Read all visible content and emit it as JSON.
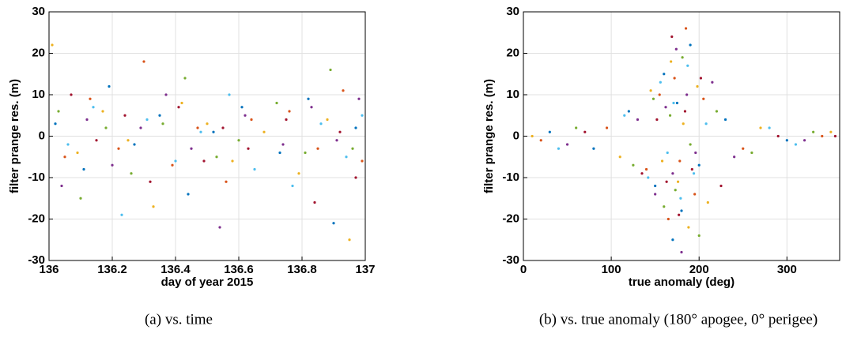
{
  "chart_data": [
    {
      "type": "scatter",
      "xlabel": "day of year 2015",
      "ylabel": "filter prange res. (m)",
      "caption": "(a) vs. time",
      "xlim": [
        136,
        137
      ],
      "xticks": [
        136,
        136.2,
        136.4,
        136.6,
        136.8,
        137
      ],
      "ylim": [
        -30,
        30
      ],
      "yticks": [
        -30,
        -20,
        -10,
        0,
        10,
        20,
        30
      ],
      "grid": true,
      "series": [
        {
          "color": "#0072BD",
          "x": [
            136.02,
            136.11,
            136.19,
            136.27,
            136.35,
            136.44,
            136.52,
            136.61,
            136.73,
            136.82,
            136.9,
            136.97
          ],
          "values": [
            3,
            -8,
            12,
            -2,
            5,
            -14,
            1,
            7,
            -4,
            9,
            -21,
            2
          ]
        },
        {
          "color": "#D95319",
          "x": [
            136.05,
            136.13,
            136.22,
            136.3,
            136.39,
            136.47,
            136.56,
            136.64,
            136.76,
            136.85,
            136.93,
            136.99
          ],
          "values": [
            -5,
            9,
            -3,
            18,
            -7,
            2,
            -11,
            4,
            6,
            -3,
            11,
            -6
          ]
        },
        {
          "color": "#EDB120",
          "x": [
            136.01,
            136.09,
            136.17,
            136.25,
            136.33,
            136.42,
            136.5,
            136.58,
            136.68,
            136.79,
            136.88,
            136.95
          ],
          "values": [
            22,
            -4,
            6,
            -1,
            -17,
            8,
            3,
            -6,
            1,
            -9,
            4,
            -25
          ]
        },
        {
          "color": "#7E2F8E",
          "x": [
            136.04,
            136.12,
            136.2,
            136.29,
            136.37,
            136.45,
            136.54,
            136.62,
            136.74,
            136.83,
            136.91,
            136.98
          ],
          "values": [
            -12,
            4,
            -7,
            2,
            10,
            -3,
            -22,
            5,
            -2,
            7,
            -1,
            9
          ]
        },
        {
          "color": "#77AC30",
          "x": [
            136.03,
            136.1,
            136.18,
            136.26,
            136.36,
            136.43,
            136.53,
            136.6,
            136.72,
            136.81,
            136.89,
            136.96
          ],
          "values": [
            6,
            -15,
            2,
            -9,
            3,
            14,
            -5,
            -1,
            8,
            -4,
            16,
            -3
          ]
        },
        {
          "color": "#4DBEEE",
          "x": [
            136.06,
            136.14,
            136.23,
            136.31,
            136.4,
            136.48,
            136.57,
            136.65,
            136.77,
            136.86,
            136.94,
            136.99
          ],
          "values": [
            -2,
            7,
            -19,
            4,
            -6,
            1,
            10,
            -8,
            -12,
            3,
            -5,
            5
          ]
        },
        {
          "color": "#A2142F",
          "x": [
            136.07,
            136.15,
            136.24,
            136.32,
            136.41,
            136.49,
            136.55,
            136.63,
            136.75,
            136.84,
            136.92,
            136.97
          ],
          "values": [
            10,
            -1,
            5,
            -11,
            7,
            -6,
            2,
            -3,
            4,
            -16,
            1,
            -10
          ]
        }
      ]
    },
    {
      "type": "scatter",
      "xlabel": "true anomaly (deg)",
      "ylabel": "filter prange res. (m)",
      "caption": "(b) vs. true anomaly (180° apogee, 0° perigee)",
      "xlim": [
        0,
        360
      ],
      "xticks": [
        0,
        100,
        200,
        300
      ],
      "ylim": [
        -30,
        30
      ],
      "yticks": [
        -30,
        -20,
        -10,
        0,
        10,
        20,
        30
      ],
      "grid": true,
      "series": [
        {
          "color": "#0072BD",
          "x": [
            30,
            80,
            120,
            150,
            160,
            170,
            175,
            180,
            190,
            200,
            230,
            300
          ],
          "values": [
            1,
            -3,
            6,
            -12,
            15,
            -25,
            8,
            -18,
            22,
            -7,
            4,
            -1
          ]
        },
        {
          "color": "#D95319",
          "x": [
            20,
            95,
            140,
            155,
            165,
            172,
            178,
            185,
            195,
            205,
            250,
            340
          ],
          "values": [
            -1,
            2,
            -8,
            10,
            -20,
            14,
            -6,
            26,
            -14,
            9,
            -3,
            0
          ]
        },
        {
          "color": "#EDB120",
          "x": [
            10,
            110,
            145,
            158,
            168,
            176,
            182,
            188,
            198,
            210,
            270,
            350
          ],
          "values": [
            0,
            -5,
            11,
            -6,
            18,
            -11,
            3,
            -22,
            12,
            -16,
            2,
            1
          ]
        },
        {
          "color": "#7E2F8E",
          "x": [
            50,
            130,
            150,
            162,
            170,
            174,
            180,
            186,
            196,
            215,
            240,
            320
          ],
          "values": [
            -2,
            4,
            -14,
            7,
            -9,
            21,
            -28,
            10,
            -4,
            13,
            -5,
            -1
          ]
        },
        {
          "color": "#77AC30",
          "x": [
            60,
            125,
            148,
            160,
            167,
            173,
            181,
            190,
            200,
            220,
            260,
            330
          ],
          "values": [
            2,
            -7,
            9,
            -17,
            5,
            -13,
            19,
            -2,
            -24,
            6,
            -4,
            1
          ]
        },
        {
          "color": "#4DBEEE",
          "x": [
            40,
            115,
            142,
            156,
            164,
            171,
            179,
            187,
            194,
            208,
            280,
            310
          ],
          "values": [
            -3,
            5,
            -10,
            13,
            -4,
            8,
            -15,
            17,
            -9,
            3,
            2,
            -2
          ]
        },
        {
          "color": "#A2142F",
          "x": [
            70,
            135,
            152,
            163,
            169,
            177,
            184,
            192,
            202,
            225,
            290,
            355
          ],
          "values": [
            1,
            -9,
            4,
            -11,
            24,
            -19,
            6,
            -8,
            14,
            -12,
            0,
            0
          ]
        }
      ]
    }
  ]
}
